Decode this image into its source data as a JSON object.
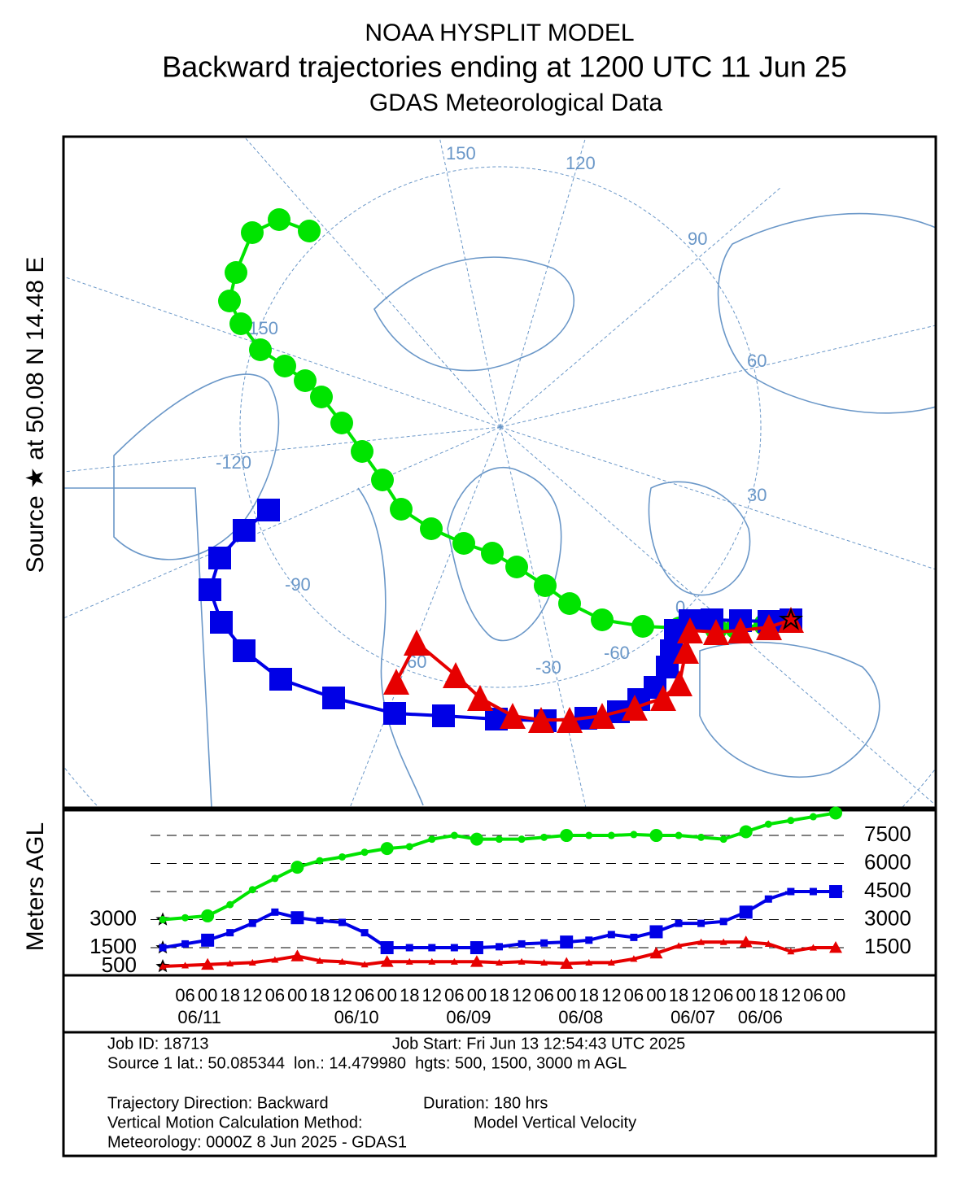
{
  "chart_data": {
    "type": "line",
    "title": "NOAA HYSPLIT MODEL",
    "subtitle": "Backward trajectories ending at 1200 UTC 11 Jun 25",
    "subtitle2": "GDAS Meteorological Data",
    "source_label": "Source ★ at 50.08 N 14.48 E",
    "ylabel": "Meters AGL",
    "map_labels": [
      "150",
      "120",
      "90",
      "60",
      "30",
      "0",
      "-30",
      "-60",
      "-90",
      "-120",
      "-150",
      "60",
      "30"
    ],
    "categories": [
      null,
      "06",
      "00",
      "18",
      "12",
      "06",
      "00",
      "18",
      "12",
      "06",
      "00",
      "18",
      "12",
      "06",
      "00",
      "18",
      "12",
      "06",
      "00",
      "18",
      "12",
      "06",
      "00",
      "18",
      "12",
      "06",
      "00",
      "18",
      "12",
      "06",
      "00"
    ],
    "date_categories": [
      null,
      null,
      "06/11",
      null,
      null,
      null,
      null,
      null,
      null,
      "06/10",
      null,
      null,
      null,
      null,
      "06/09",
      null,
      null,
      null,
      null,
      "06/08",
      null,
      null,
      null,
      null,
      "06/07",
      null,
      null,
      "06/06",
      null,
      null,
      null
    ],
    "ylim": [
      0,
      8850
    ],
    "yticks": [
      1500,
      3000,
      4500,
      6000,
      7500
    ],
    "start_heights": [
      500,
      1500,
      3000
    ],
    "grid": true,
    "series": [
      {
        "name": "3000",
        "color": "#00e400",
        "marker": "circle",
        "values": [
          3000,
          3100,
          3200,
          3800,
          4600,
          5200,
          5800,
          6150,
          6350,
          6600,
          6800,
          6900,
          7300,
          7500,
          7300,
          7300,
          7300,
          7400,
          7500,
          7500,
          7500,
          7550,
          7500,
          7500,
          7400,
          7300,
          7700,
          8100,
          8300,
          8500,
          8700
        ]
      },
      {
        "name": "1500",
        "color": "#0000e6",
        "marker": "square",
        "values": [
          1500,
          1700,
          1900,
          2300,
          2800,
          3400,
          3100,
          2950,
          2850,
          2300,
          1500,
          1500,
          1500,
          1500,
          1500,
          1550,
          1700,
          1750,
          1800,
          1900,
          2200,
          2050,
          2350,
          2800,
          2800,
          2900,
          3400,
          4100,
          4500,
          4500,
          4500
        ]
      },
      {
        "name": "500",
        "color": "#e60000",
        "marker": "triangle",
        "values": [
          500,
          550,
          600,
          650,
          700,
          850,
          1050,
          800,
          750,
          600,
          750,
          750,
          750,
          750,
          750,
          700,
          750,
          700,
          650,
          700,
          700,
          900,
          1200,
          1600,
          1800,
          1800,
          1800,
          1700,
          1300,
          1500,
          1500
        ]
      }
    ],
    "info": {
      "job_id": "Job ID: 18713",
      "job_start": "Job Start: Fri Jun 13 12:54:43 UTC 2025",
      "source": "Source 1 lat.: 50.085344  lon.: 14.479980  hgts: 500, 1500, 3000 m AGL",
      "direction": "Trajectory Direction: Backward",
      "duration": "Duration: 180 hrs",
      "vertical": "Vertical Motion Calculation Method:",
      "vertical_method": "Model Vertical Velocity",
      "meteorology": "Meteorology: 0000Z 8 Jun 2025 - GDAS1"
    }
  }
}
